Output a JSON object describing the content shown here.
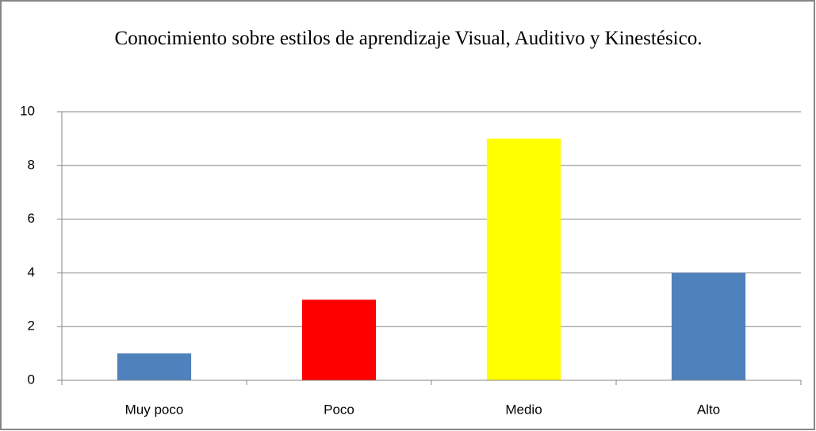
{
  "chart_data": {
    "type": "bar",
    "title": "Conocimiento sobre estilos de aprendizaje Visual, Auditivo y Kinestésico.",
    "categories": [
      "Muy poco",
      "Poco",
      "Medio",
      "Alto"
    ],
    "values": [
      1,
      3,
      9,
      4
    ],
    "colors": [
      "#4f81bd",
      "#ff0000",
      "#ffff00",
      "#4f81bd"
    ],
    "ylim": [
      0,
      10
    ],
    "yticks": [
      0,
      2,
      4,
      6,
      8,
      10
    ],
    "grid": true
  }
}
